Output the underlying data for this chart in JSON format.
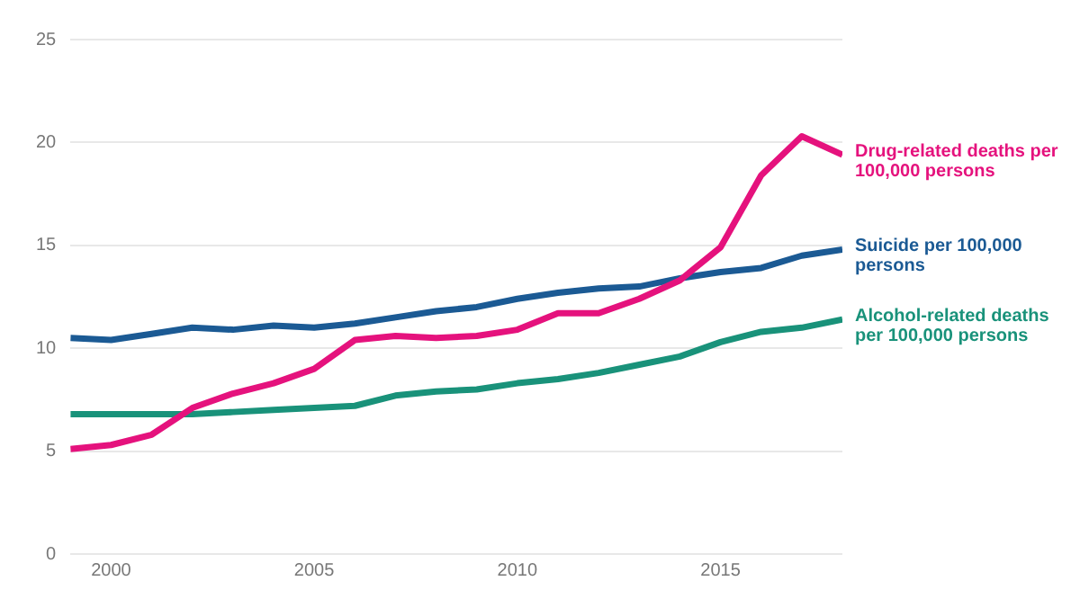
{
  "chart_data": {
    "type": "line",
    "x": [
      1999,
      2000,
      2001,
      2002,
      2003,
      2004,
      2005,
      2006,
      2007,
      2008,
      2009,
      2010,
      2011,
      2012,
      2013,
      2014,
      2015,
      2016,
      2017,
      2018
    ],
    "series": [
      {
        "name": "Drug-related deaths per 100,000 persons",
        "color": "#e5127d",
        "values": [
          5.1,
          5.3,
          5.8,
          7.1,
          7.8,
          8.3,
          9.0,
          10.4,
          10.6,
          10.5,
          10.6,
          10.9,
          11.7,
          11.7,
          12.4,
          13.3,
          14.9,
          18.4,
          20.3,
          19.4
        ]
      },
      {
        "name": "Suicide per 100,000 persons",
        "color": "#1b5a94",
        "values": [
          10.5,
          10.4,
          10.7,
          11.0,
          10.9,
          11.1,
          11.0,
          11.2,
          11.5,
          11.8,
          12.0,
          12.4,
          12.7,
          12.9,
          13.0,
          13.4,
          13.7,
          13.9,
          14.5,
          14.8
        ]
      },
      {
        "name": "Alcohol-related deaths per 100,000 persons",
        "color": "#19927a",
        "values": [
          6.8,
          6.8,
          6.8,
          6.8,
          6.9,
          7.0,
          7.1,
          7.2,
          7.7,
          7.9,
          8.0,
          8.3,
          8.5,
          8.8,
          9.2,
          9.6,
          10.3,
          10.8,
          11.0,
          11.4
        ]
      }
    ],
    "xlim": [
      1999,
      2018
    ],
    "xticks": [
      2000,
      2005,
      2010,
      2015
    ],
    "ylim": [
      0,
      25
    ],
    "yticks": [
      0,
      5,
      10,
      15,
      20,
      25
    ],
    "grid": "y",
    "legend": false,
    "marker": "none",
    "line_style": "solid"
  }
}
